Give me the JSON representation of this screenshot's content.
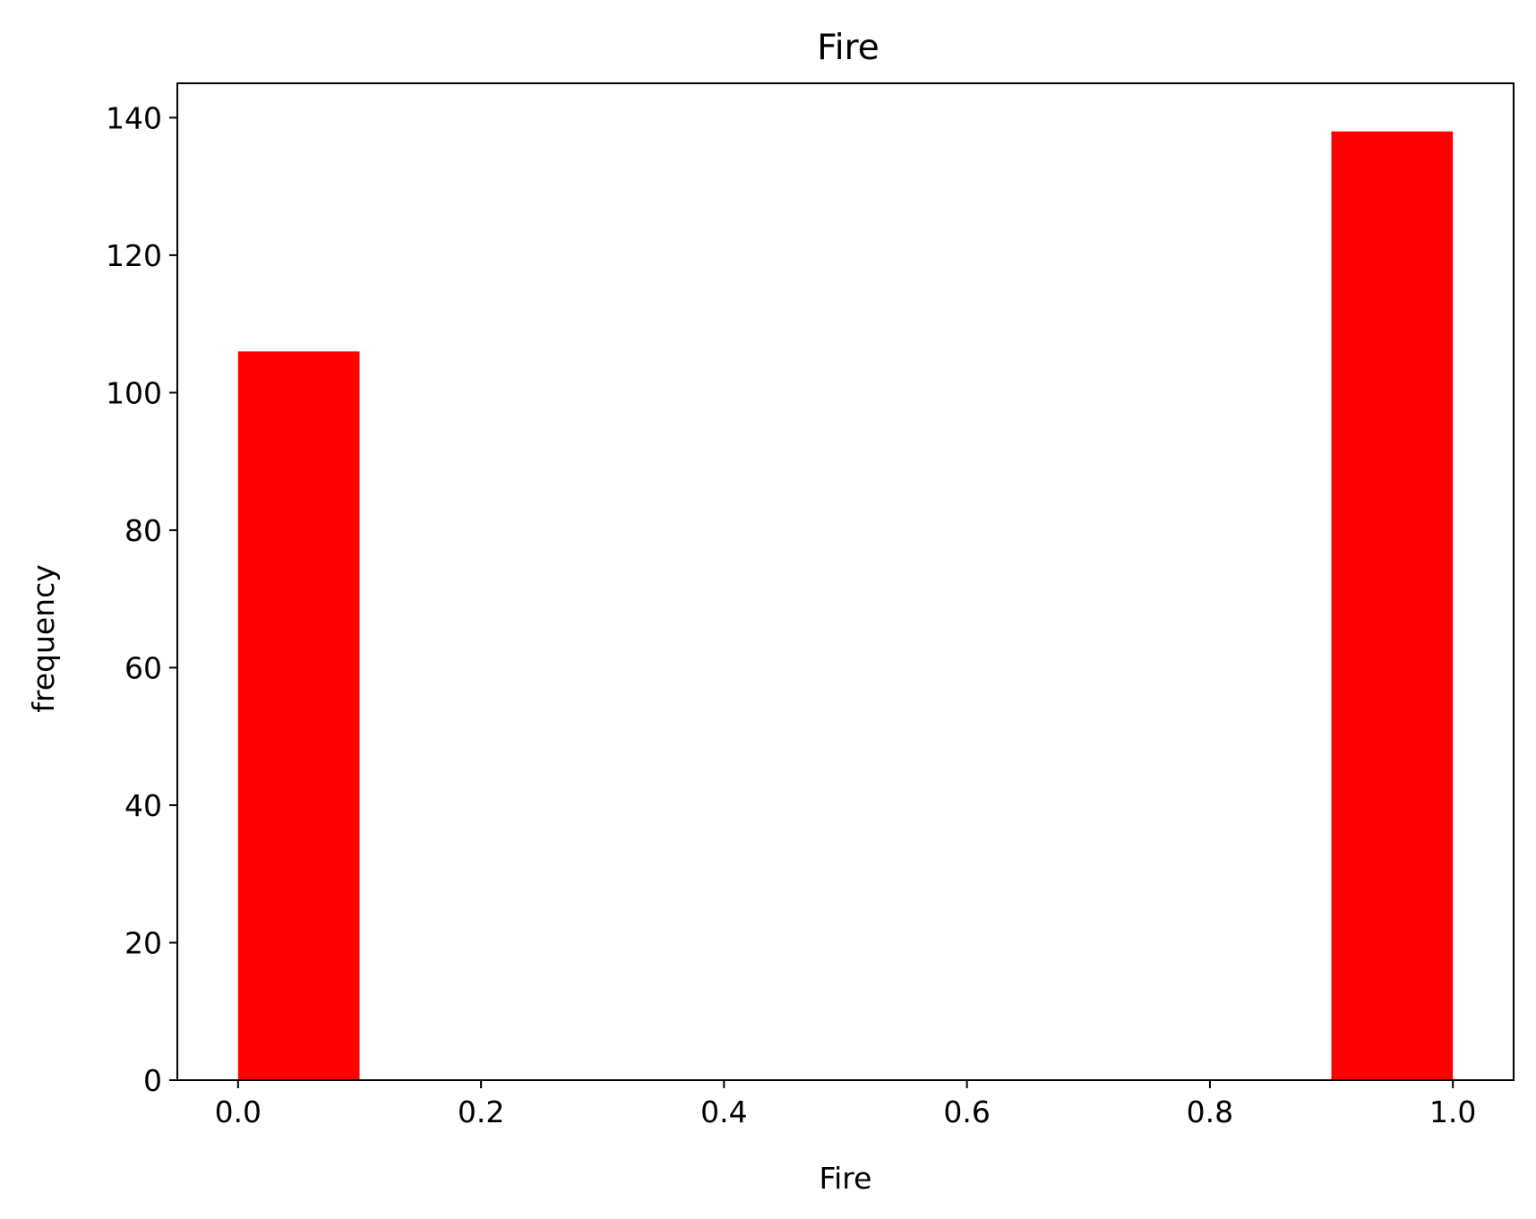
{
  "chart_data": {
    "type": "bar",
    "title": "Fire",
    "xlabel": "Fire",
    "ylabel": "frequency",
    "xlim": [
      -0.05,
      1.05
    ],
    "ylim": [
      0,
      145
    ],
    "x_ticks": [
      "0.0",
      "0.2",
      "0.4",
      "0.6",
      "0.8",
      "1.0"
    ],
    "x_tick_values": [
      0.0,
      0.2,
      0.4,
      0.6,
      0.8,
      1.0
    ],
    "y_ticks": [
      "0",
      "20",
      "40",
      "60",
      "80",
      "100",
      "120",
      "140"
    ],
    "y_tick_values": [
      0,
      20,
      40,
      60,
      80,
      100,
      120,
      140
    ],
    "bins": [
      {
        "x0": 0.0,
        "x1": 0.1,
        "value": 106
      },
      {
        "x0": 0.9,
        "x1": 1.0,
        "value": 138
      }
    ],
    "bar_color": "#ff0000",
    "grid": false,
    "legend": false
  }
}
